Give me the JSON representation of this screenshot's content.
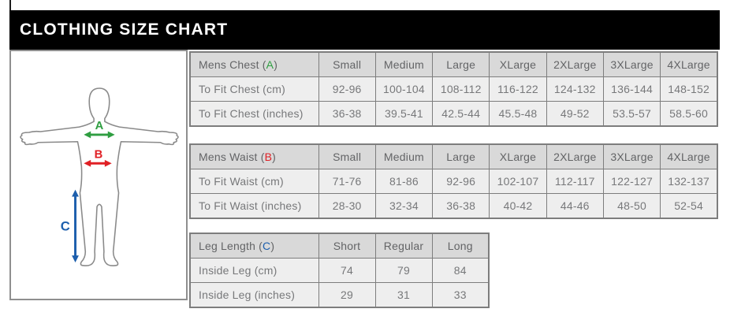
{
  "title": "CLOTHING SIZE CHART",
  "colors": {
    "title_bar_bg": "#000000",
    "title_text": "#ffffff",
    "table_header_bg": "#d9d9d9",
    "table_cell_bg": "#eeeeee",
    "table_border": "#7d7d7d",
    "table_header_text": "#636466",
    "table_cell_text": "#77787a",
    "figure_outline": "#8a8a8a",
    "measure_a_green": "#2f9e41",
    "measure_b_red": "#e02025",
    "measure_c_blue": "#1d5fad"
  },
  "figure": {
    "measures": {
      "A": {
        "label": "A",
        "color": "#2f9e41",
        "meaning": "chest width arrow"
      },
      "B": {
        "label": "B",
        "color": "#e02025",
        "meaning": "waist width arrow"
      },
      "C": {
        "label": "C",
        "color": "#1d5fad",
        "meaning": "inside leg length arrow"
      }
    },
    "outline_color": "#8a8a8a"
  },
  "chart_data": [
    {
      "type": "table",
      "title": "Mens Chest (A)",
      "label_prefix": "Mens Chest (",
      "letter": "A",
      "label_suffix": ")",
      "letter_color": "#2f9e41",
      "columns": [
        "Small",
        "Medium",
        "Large",
        "XLarge",
        "2XLarge",
        "3XLarge",
        "4XLarge"
      ],
      "rows": [
        {
          "label": "To Fit Chest (cm)",
          "values": [
            "92-96",
            "100-104",
            "108-112",
            "116-122",
            "124-132",
            "136-144",
            "148-152"
          ]
        },
        {
          "label": "To Fit Chest (inches)",
          "values": [
            "36-38",
            "39.5-41",
            "42.5-44",
            "45.5-48",
            "49-52",
            "53.5-57",
            "58.5-60"
          ]
        }
      ]
    },
    {
      "type": "table",
      "title": "Mens Waist (B)",
      "label_prefix": "Mens Waist (",
      "letter": "B",
      "label_suffix": ")",
      "letter_color": "#e02025",
      "columns": [
        "Small",
        "Medium",
        "Large",
        "XLarge",
        "2XLarge",
        "3XLarge",
        "4XLarge"
      ],
      "rows": [
        {
          "label": "To Fit Waist (cm)",
          "values": [
            "71-76",
            "81-86",
            "92-96",
            "102-107",
            "112-117",
            "122-127",
            "132-137"
          ]
        },
        {
          "label": "To Fit Waist (inches)",
          "values": [
            "28-30",
            "32-34",
            "36-38",
            "40-42",
            "44-46",
            "48-50",
            "52-54"
          ]
        }
      ]
    },
    {
      "type": "table",
      "title": "Leg Length (C)",
      "label_prefix": "Leg Length (",
      "letter": "C",
      "label_suffix": ")",
      "letter_color": "#1d5fad",
      "columns": [
        "Short",
        "Regular",
        "Long"
      ],
      "rows": [
        {
          "label": "Inside Leg (cm)",
          "values": [
            "74",
            "79",
            "84"
          ]
        },
        {
          "label": "Inside Leg (inches)",
          "values": [
            "29",
            "31",
            "33"
          ]
        }
      ]
    }
  ]
}
